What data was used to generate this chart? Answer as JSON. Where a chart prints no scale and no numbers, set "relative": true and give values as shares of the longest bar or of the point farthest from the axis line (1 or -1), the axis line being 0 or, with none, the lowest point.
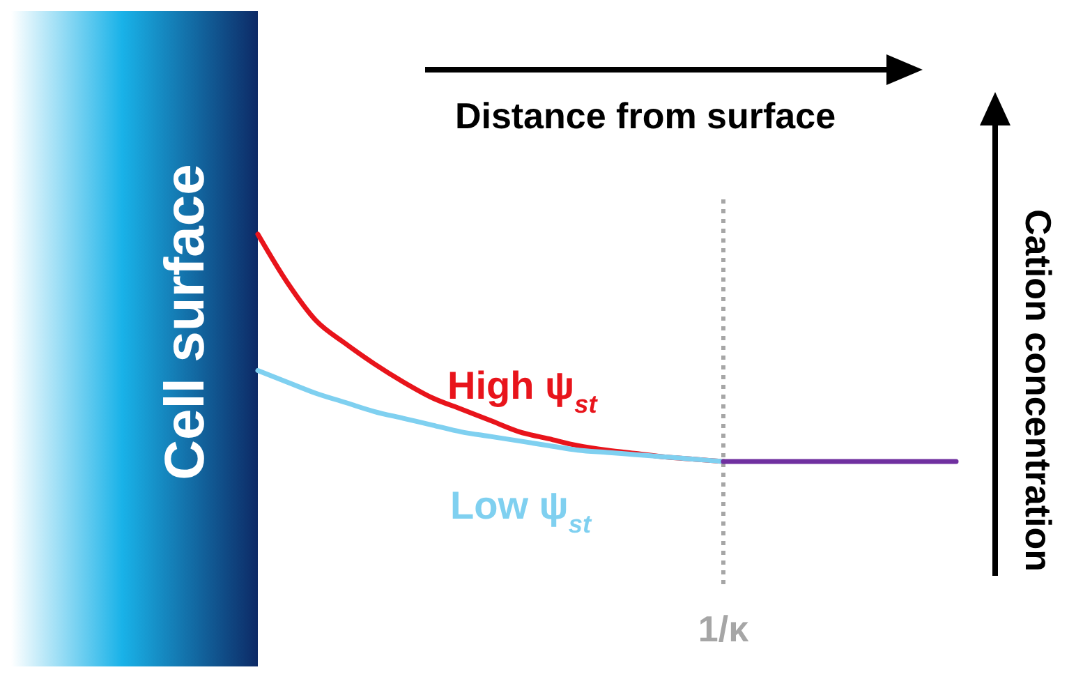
{
  "chart_data": {
    "type": "line",
    "relative": true,
    "xlabel": "Distance from surface",
    "ylabel": "Cation concentration",
    "categories": [
      null,
      null,
      null,
      null,
      null,
      null,
      null,
      null,
      null,
      null,
      null,
      null,
      null,
      null,
      null,
      null,
      null,
      null,
      null,
      null,
      null,
      null,
      null,
      null,
      null
    ],
    "series": [
      {
        "name": "High ψ$_{st}$",
        "color": "#e8141b",
        "values": [
          1,
          0.79,
          0.62,
          0.52,
          0.43,
          0.35,
          0.28,
          0.23,
          0.18,
          0.13,
          0.1,
          0.07,
          0.05,
          0.035,
          0.02,
          0.01,
          0,
          null,
          null,
          null,
          null,
          null,
          null,
          null,
          null
        ]
      },
      {
        "name": "Low ψ$_{st}$",
        "color": "#7fd0f0",
        "values": [
          0.4,
          0.35,
          0.3,
          0.26,
          0.22,
          0.19,
          0.16,
          0.13,
          0.11,
          0.09,
          0.07,
          0.05,
          0.04,
          0.03,
          0.02,
          0.01,
          0,
          null,
          null,
          null,
          null,
          null,
          null,
          null,
          null
        ]
      },
      {
        "color": "#7030a0",
        "values": [
          null,
          null,
          null,
          null,
          null,
          null,
          null,
          null,
          null,
          null,
          null,
          null,
          null,
          null,
          null,
          null,
          0,
          0,
          0,
          0,
          0,
          0,
          0,
          0,
          0
        ]
      }
    ],
    "annotations": [
      "Cell surface",
      "1/κ"
    ],
    "marker": "none",
    "line_style": "solid"
  }
}
